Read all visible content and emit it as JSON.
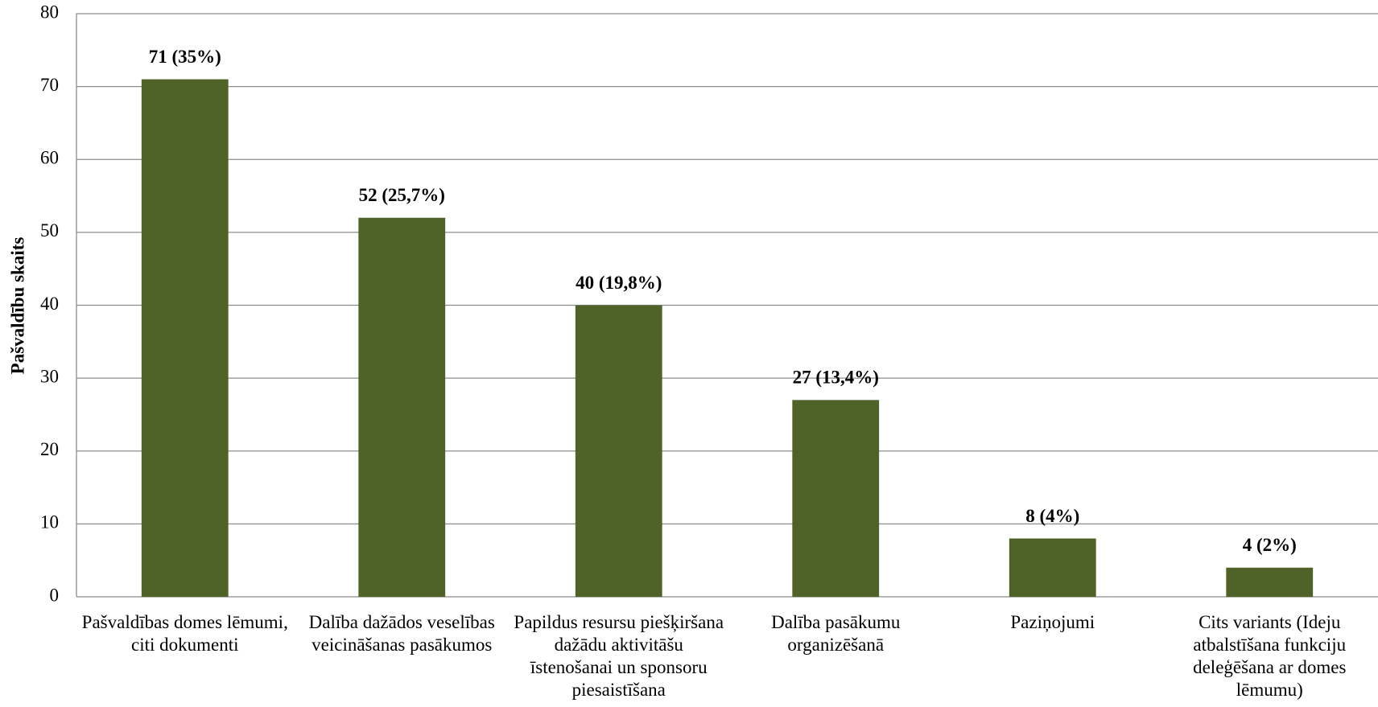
{
  "chart_data": {
    "type": "bar",
    "y_label": "Pašvaldību skaits",
    "categories": [
      "Pašvaldības domes lēmumi, citi dokumenti",
      "Dalība dažādos veselības veicināšanas pasākumos",
      "Papildus resursu piešķiršana dažādu aktivitāšu īstenošanai un sponsoru piesaistīšana",
      "Dalība pasākumu organizēšanā",
      "Paziņojumi",
      "Cits variants (Ideju atbalstīšana funkciju deleģēšana ar domes lēmumu)"
    ],
    "values": [
      71,
      52,
      40,
      27,
      8,
      4
    ],
    "value_labels": [
      "71 (35%)",
      "52 (25,7%)",
      "40 (19,8%)",
      "27 (13,4%)",
      "8 (4%)",
      "4 (2%)"
    ],
    "color": "#4f6228",
    "ylim": [
      0,
      80
    ],
    "yticks": [
      0,
      10,
      20,
      30,
      40,
      50,
      60,
      70,
      80
    ],
    "grid": true
  }
}
